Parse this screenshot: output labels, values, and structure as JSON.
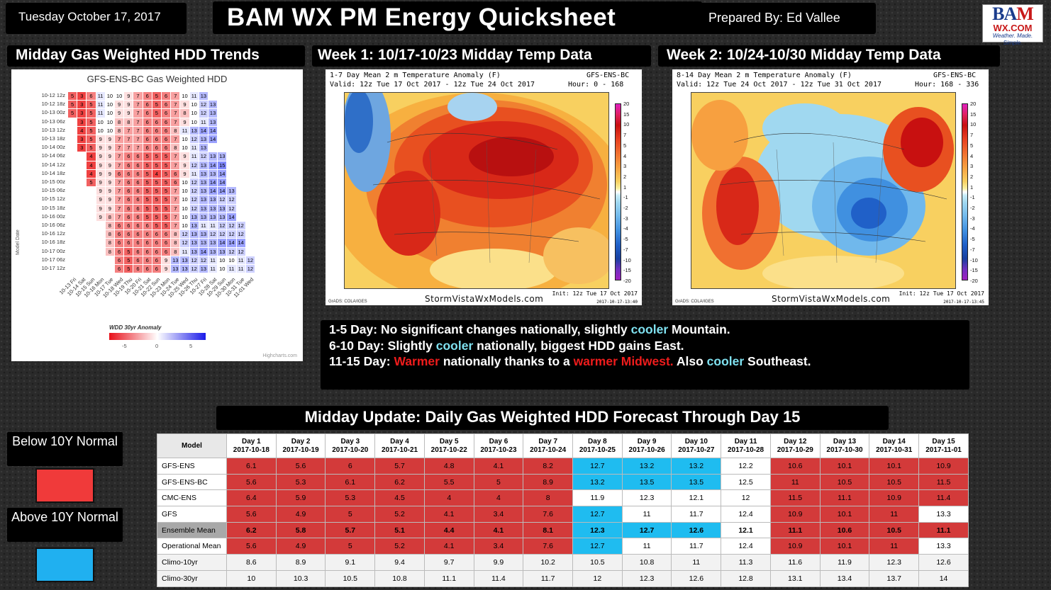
{
  "header": {
    "date": "Tuesday October 17, 2017",
    "title": "BAM WX PM Energy Quicksheet",
    "prepared_by": "Prepared By: Ed Vallee"
  },
  "logo": {
    "main_b": "B",
    "main_a": "A",
    "main_m": "M",
    "sub": "WX.COM",
    "tag": "Weather. Made. Simple."
  },
  "sections": {
    "trend_title": "Midday Gas Weighted HDD Trends",
    "week1_title": "Week 1: 10/17-10/23 Midday Temp Data",
    "week2_title": "Week 2: 10/24-10/30 Midday Temp Data",
    "table_title": "Midday Update: Daily Gas Weighted HDD Forecast Through Day 15"
  },
  "trend_chart": {
    "title": "GFS-ENS-BC Gas Weighted HDD",
    "ylabel": "Model Date",
    "legend_title": "WDD 30yr Anomaly",
    "legend_ticks": [
      "-5",
      "0",
      "5"
    ],
    "credit": "Highcharts.com",
    "row_labels": [
      "10-12 12z",
      "10-12 18z",
      "10-13 00z",
      "10-13 06z",
      "10-13 12z",
      "10-13 18z",
      "10-14 00z",
      "10-14 06z",
      "10-14 12z",
      "10-14 18z",
      "10-15 00z",
      "10-15 06z",
      "10-15 12z",
      "10-15 18z",
      "10-16 00z",
      "10-16 06z",
      "10-16 12z",
      "10-16 18z",
      "10-17 00z",
      "10-17 06z",
      "10-17 12z"
    ],
    "x_labels": [
      "10-13 Fri",
      "10-14 Sat",
      "10-15 Sun",
      "10-16 Mon",
      "10-17 Tue",
      "10-18 Wed",
      "10-19 Thu",
      "10-20 Fri",
      "10-21 Sat",
      "10-22 Sun",
      "10-23 Mon",
      "10-24 Tue",
      "10-25 Wed",
      "10-26 Thu",
      "10-27 Fri",
      "10-28 Sat",
      "10-29 Sun",
      "10-30 Mon",
      "10-31 Tue",
      "11-01 Wed"
    ],
    "rows": [
      {
        "start": 0,
        "values": [
          5,
          3,
          6,
          11,
          10,
          10,
          9,
          7,
          6,
          5,
          6,
          7,
          10,
          11,
          13
        ]
      },
      {
        "start": 0,
        "values": [
          5,
          3,
          5,
          11,
          10,
          9,
          9,
          7,
          6,
          5,
          6,
          7,
          9,
          10,
          12,
          13
        ]
      },
      {
        "start": 0,
        "values": [
          5,
          3,
          5,
          11,
          10,
          9,
          9,
          7,
          6,
          5,
          6,
          7,
          8,
          10,
          12,
          13
        ]
      },
      {
        "start": 1,
        "values": [
          3,
          5,
          10,
          10,
          8,
          8,
          7,
          6,
          6,
          6,
          7,
          9,
          10,
          11,
          13
        ]
      },
      {
        "start": 1,
        "values": [
          4,
          5,
          10,
          10,
          8,
          7,
          7,
          6,
          6,
          6,
          8,
          11,
          13,
          14,
          14
        ]
      },
      {
        "start": 1,
        "values": [
          3,
          5,
          9,
          9,
          7,
          7,
          7,
          6,
          6,
          6,
          7,
          10,
          12,
          13,
          14
        ]
      },
      {
        "start": 1,
        "values": [
          3,
          5,
          9,
          9,
          7,
          7,
          7,
          6,
          6,
          6,
          8,
          10,
          11,
          13
        ]
      },
      {
        "start": 2,
        "values": [
          4,
          9,
          9,
          7,
          6,
          6,
          5,
          5,
          5,
          7,
          9,
          11,
          12,
          13,
          13
        ]
      },
      {
        "start": 2,
        "values": [
          4,
          9,
          9,
          7,
          6,
          6,
          5,
          5,
          5,
          7,
          9,
          12,
          13,
          14,
          15
        ]
      },
      {
        "start": 2,
        "values": [
          4,
          9,
          9,
          6,
          6,
          6,
          5,
          4,
          5,
          6,
          9,
          11,
          13,
          13,
          14
        ]
      },
      {
        "start": 2,
        "values": [
          5,
          9,
          9,
          7,
          6,
          6,
          5,
          5,
          5,
          6,
          10,
          12,
          13,
          14,
          14
        ]
      },
      {
        "start": 3,
        "values": [
          9,
          9,
          7,
          6,
          6,
          5,
          5,
          5,
          7,
          10,
          12,
          13,
          14,
          14,
          13
        ]
      },
      {
        "start": 3,
        "values": [
          9,
          9,
          7,
          6,
          6,
          5,
          5,
          5,
          7,
          10,
          12,
          13,
          13,
          12,
          12
        ]
      },
      {
        "start": 3,
        "values": [
          9,
          9,
          7,
          6,
          6,
          5,
          5,
          5,
          7,
          10,
          12,
          13,
          13,
          13,
          12
        ]
      },
      {
        "start": 3,
        "values": [
          9,
          8,
          7,
          6,
          6,
          5,
          5,
          5,
          7,
          10,
          13,
          13,
          13,
          13,
          14
        ]
      },
      {
        "start": 4,
        "values": [
          8,
          6,
          6,
          6,
          6,
          5,
          5,
          7,
          10,
          13,
          11,
          11,
          12,
          12,
          12
        ]
      },
      {
        "start": 4,
        "values": [
          8,
          6,
          6,
          6,
          6,
          6,
          6,
          8,
          12,
          13,
          13,
          12,
          12,
          12,
          12
        ]
      },
      {
        "start": 4,
        "values": [
          8,
          6,
          6,
          6,
          6,
          6,
          6,
          8,
          12,
          13,
          13,
          13,
          14,
          14,
          14
        ]
      },
      {
        "start": 4,
        "values": [
          8,
          6,
          5,
          6,
          6,
          6,
          6,
          8,
          11,
          13,
          14,
          13,
          13,
          12,
          12
        ]
      },
      {
        "start": 5,
        "values": [
          6,
          5,
          6,
          6,
          6,
          9,
          13,
          13,
          12,
          12,
          11,
          10,
          10,
          11,
          12
        ]
      },
      {
        "start": 5,
        "values": [
          6,
          5,
          6,
          6,
          6,
          9,
          13,
          13,
          12,
          13,
          11,
          10,
          11,
          11,
          12
        ]
      }
    ]
  },
  "map1": {
    "line1_left": "1-7 Day Mean 2 m Temperature Anomaly (F)",
    "line1_right": "GFS-ENS-BC",
    "line2_left": "Valid: 12z Tue 17 Oct 2017 - 12z Tue 24 Oct 2017",
    "line2_right": "Hour: 0 - 168",
    "footer": "StormVistaWxModels.com",
    "init": "Init: 12z Tue 17 Oct 2017",
    "stamp": "2017-10-17-13:40",
    "grads": "GrADS: COLA/IGES"
  },
  "map2": {
    "line1_left": "8-14 Day Mean 2 m Temperature Anomaly (F)",
    "line1_right": "GFS-ENS-BC",
    "line2_left": "Valid: 12z Tue 24 Oct 2017 - 12z Tue 31 Oct 2017",
    "line2_right": "Hour: 168 - 336",
    "footer": "StormVistaWxModels.com",
    "init": "Init: 12z Tue 17 Oct 2017",
    "stamp": "2017-10-17-13:45",
    "grads": "GrADS: COLA/IGES"
  },
  "colorbar_labels": [
    "20",
    "15",
    "10",
    "7",
    "5",
    "4",
    "3",
    "2",
    "1",
    "-1",
    "-2",
    "-3",
    "-4",
    "-5",
    "-7",
    "-10",
    "-15",
    "-20"
  ],
  "summary": {
    "l1_a": "1-5 Day: No significant changes nationally, slightly ",
    "l1_cool": "cooler",
    "l1_b": " Mountain.",
    "l2_a": "6-10 Day: Slightly ",
    "l2_cool": "cooler",
    "l2_b": " nationally, biggest HDD gains East.",
    "l3_a": "11-15 Day: ",
    "l3_warm1": "Warmer",
    "l3_b": " nationally thanks to a ",
    "l3_warm2": "warmer Midwest.",
    "l3_c": " Also ",
    "l3_cool": "cooler",
    "l3_d": " Southeast."
  },
  "legend": {
    "below": "Below 10Y Normal",
    "above": "Above 10Y Normal",
    "below_color": "#f03a3a",
    "above_color": "#20b0f0"
  },
  "table": {
    "model_header": "Model",
    "days": [
      {
        "day": "Day 1",
        "date": "2017-10-18"
      },
      {
        "day": "Day 2",
        "date": "2017-10-19"
      },
      {
        "day": "Day 3",
        "date": "2017-10-20"
      },
      {
        "day": "Day 4",
        "date": "2017-10-21"
      },
      {
        "day": "Day 5",
        "date": "2017-10-22"
      },
      {
        "day": "Day 6",
        "date": "2017-10-23"
      },
      {
        "day": "Day 7",
        "date": "2017-10-24"
      },
      {
        "day": "Day 8",
        "date": "2017-10-25"
      },
      {
        "day": "Day 9",
        "date": "2017-10-26"
      },
      {
        "day": "Day 10",
        "date": "2017-10-27"
      },
      {
        "day": "Day 11",
        "date": "2017-10-28"
      },
      {
        "day": "Day 12",
        "date": "2017-10-29"
      },
      {
        "day": "Day 13",
        "date": "2017-10-30"
      },
      {
        "day": "Day 14",
        "date": "2017-10-31"
      },
      {
        "day": "Day 15",
        "date": "2017-11-01"
      }
    ],
    "rows": [
      {
        "model": "GFS-ENS",
        "values": [
          "6.1",
          "5.6",
          "6",
          "5.7",
          "4.8",
          "4.1",
          "8.2",
          "12.7",
          "13.2",
          "13.2",
          "12.2",
          "10.6",
          "10.1",
          "10.1",
          "10.9"
        ],
        "status": "rrrrrrrbbbwrrrr",
        "type": "normal"
      },
      {
        "model": "GFS-ENS-BC",
        "values": [
          "5.6",
          "5.3",
          "6.1",
          "6.2",
          "5.5",
          "5",
          "8.9",
          "13.2",
          "13.5",
          "13.5",
          "12.5",
          "11",
          "10.5",
          "10.5",
          "11.5"
        ],
        "status": "rrrrrrrbbbwrrrr",
        "type": "normal"
      },
      {
        "model": "CMC-ENS",
        "values": [
          "6.4",
          "5.9",
          "5.3",
          "4.5",
          "4",
          "4",
          "8",
          "11.9",
          "12.3",
          "12.1",
          "12",
          "11.5",
          "11.1",
          "10.9",
          "11.4"
        ],
        "status": "rrrrrrrwwwwrrrr",
        "type": "normal"
      },
      {
        "model": "GFS",
        "values": [
          "5.6",
          "4.9",
          "5",
          "5.2",
          "4.1",
          "3.4",
          "7.6",
          "12.7",
          "11",
          "11.7",
          "12.4",
          "10.9",
          "10.1",
          "11",
          "13.3"
        ],
        "status": "rrrrrrrbwwwrrrw",
        "type": "normal"
      },
      {
        "model": "Ensemble Mean",
        "values": [
          "6.2",
          "5.8",
          "5.7",
          "5.1",
          "4.4",
          "4.1",
          "8.1",
          "12.3",
          "12.7",
          "12.6",
          "12.1",
          "11.1",
          "10.6",
          "10.5",
          "11.1"
        ],
        "status": "rrrrrrrbbbwrrrr",
        "type": "ens"
      },
      {
        "model": "Operational Mean",
        "values": [
          "5.6",
          "4.9",
          "5",
          "5.2",
          "4.1",
          "3.4",
          "7.6",
          "12.7",
          "11",
          "11.7",
          "12.4",
          "10.9",
          "10.1",
          "11",
          "13.3"
        ],
        "status": "rrrrrrrbwwwrrrw",
        "type": "normal"
      },
      {
        "model": "Climo-10yr",
        "values": [
          "8.6",
          "8.9",
          "9.1",
          "9.4",
          "9.7",
          "9.9",
          "10.2",
          "10.5",
          "10.8",
          "11",
          "11.3",
          "11.6",
          "11.9",
          "12.3",
          "12.6"
        ],
        "status": "ccccccccccccccc",
        "type": "climo"
      },
      {
        "model": "Climo-30yr",
        "values": [
          "10",
          "10.3",
          "10.5",
          "10.8",
          "11.1",
          "11.4",
          "11.7",
          "12",
          "12.3",
          "12.6",
          "12.8",
          "13.1",
          "13.4",
          "13.7",
          "14"
        ],
        "status": "ccccccccccccccc",
        "type": "climo"
      }
    ]
  }
}
